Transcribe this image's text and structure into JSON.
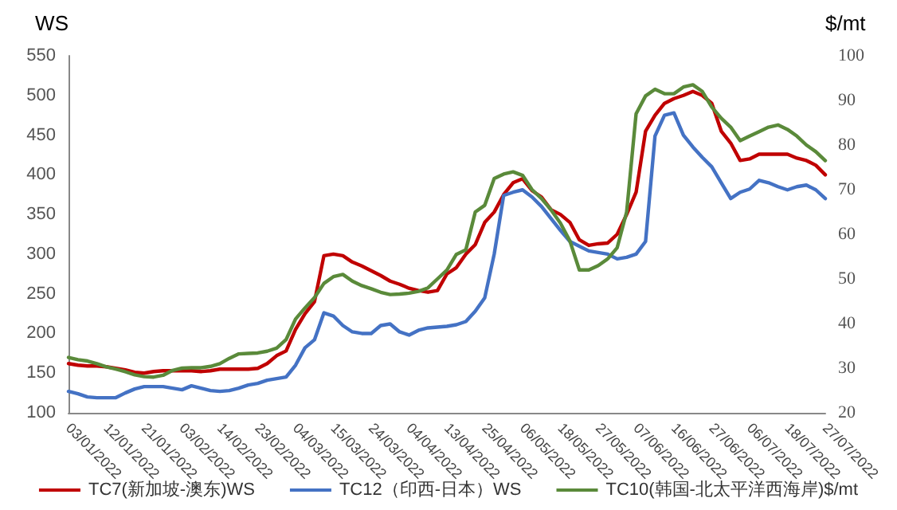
{
  "chart_data": {
    "type": "line",
    "ylabel": "WS",
    "y2label": "$/mt",
    "categories": [
      "03/01/2022",
      null,
      null,
      null,
      "12/01/2022",
      null,
      null,
      null,
      "21/01/2022",
      null,
      null,
      null,
      "03/02/2022",
      null,
      null,
      null,
      "14/02/2022",
      null,
      null,
      null,
      "23/02/2022",
      null,
      null,
      null,
      "04/03/2022",
      null,
      null,
      null,
      "15/03/2022",
      null,
      null,
      null,
      "24/03/2022",
      null,
      null,
      null,
      "04/04/2022",
      null,
      null,
      null,
      "13/04/2022",
      null,
      null,
      null,
      "25/04/2022",
      null,
      null,
      null,
      "06/05/2022",
      null,
      null,
      null,
      "18/05/2022",
      null,
      null,
      null,
      "27/05/2022",
      null,
      null,
      null,
      "07/06/2022",
      null,
      null,
      null,
      "16/06/2022",
      null,
      null,
      null,
      "27/06/2022",
      null,
      null,
      null,
      "06/07/2022",
      null,
      null,
      null,
      "18/07/2022",
      null,
      null,
      null,
      "27/07/2022"
    ],
    "series": [
      {
        "name": "TC7(新加坡-澳东)WS",
        "color": "#c00000",
        "values": [
          162,
          160,
          159,
          159,
          158,
          156,
          154,
          151,
          150,
          152,
          153,
          153,
          153,
          153,
          152,
          153,
          155,
          155,
          155,
          155,
          156,
          162,
          172,
          178,
          205,
          225,
          240,
          298,
          300,
          298,
          290,
          285,
          279,
          273,
          266,
          262,
          257,
          254,
          252,
          254,
          275,
          283,
          300,
          312,
          340,
          353,
          375,
          390,
          395,
          380,
          372,
          356,
          350,
          340,
          318,
          311,
          313,
          314,
          325,
          350,
          378,
          455,
          475,
          490,
          496,
          500,
          505,
          500,
          490,
          455,
          440,
          418,
          420,
          426,
          426,
          426,
          426,
          421,
          418,
          412,
          400
        ]
      },
      {
        "name": "TC12（印西-日本）WS",
        "color": "#4472c4",
        "values": [
          127,
          124,
          120,
          119,
          119,
          119,
          125,
          130,
          133,
          133,
          133,
          131,
          129,
          134,
          131,
          128,
          127,
          128,
          131,
          135,
          137,
          141,
          143,
          145,
          160,
          182,
          192,
          226,
          222,
          210,
          202,
          200,
          200,
          210,
          212,
          202,
          198,
          204,
          207,
          208,
          209,
          211,
          215,
          228,
          245,
          300,
          374,
          378,
          381,
          372,
          360,
          345,
          330,
          316,
          310,
          304,
          302,
          300,
          294,
          296,
          300,
          316,
          449,
          475,
          478,
          450,
          435,
          422,
          410,
          390,
          370,
          378,
          382,
          393,
          390,
          385,
          381,
          385,
          387,
          381,
          370
        ]
      },
      {
        "name": "TC10(韩国-北太平洋西海岸)$/mt",
        "color": "#5a8a3a",
        "axis": "y2",
        "values": [
          32.4,
          31.9,
          31.6,
          31,
          30.3,
          29.8,
          29.2,
          28.5,
          28.1,
          28,
          28.4,
          29.5,
          30,
          30.1,
          30.1,
          30.4,
          31,
          32.2,
          33.2,
          33.3,
          33.4,
          33.8,
          34.5,
          36.4,
          41,
          43.5,
          45.8,
          49,
          50.5,
          51,
          49.5,
          48.5,
          47.8,
          47,
          46.5,
          46.6,
          46.8,
          47.2,
          48,
          50,
          52,
          55.5,
          56.5,
          65,
          66.5,
          72.5,
          73.5,
          74,
          73.2,
          70,
          68,
          65.5,
          62.5,
          58.5,
          52,
          52,
          53,
          54.5,
          57,
          65,
          87,
          91,
          92.5,
          91.5,
          91.5,
          93,
          93.5,
          92,
          88.5,
          86,
          84,
          81,
          82,
          83,
          84,
          84.5,
          83.5,
          82,
          80,
          78.5,
          76.5
        ]
      }
    ],
    "ylim": [
      100,
      550
    ],
    "yticks": [
      100,
      150,
      200,
      250,
      300,
      350,
      400,
      450,
      500,
      550
    ],
    "y2lim": [
      20,
      100
    ],
    "y2ticks": [
      20,
      30,
      40,
      50,
      60,
      70,
      80,
      90,
      100
    ],
    "grid": false,
    "legend": "bottom",
    "marker": "none",
    "line_style": "solid"
  }
}
